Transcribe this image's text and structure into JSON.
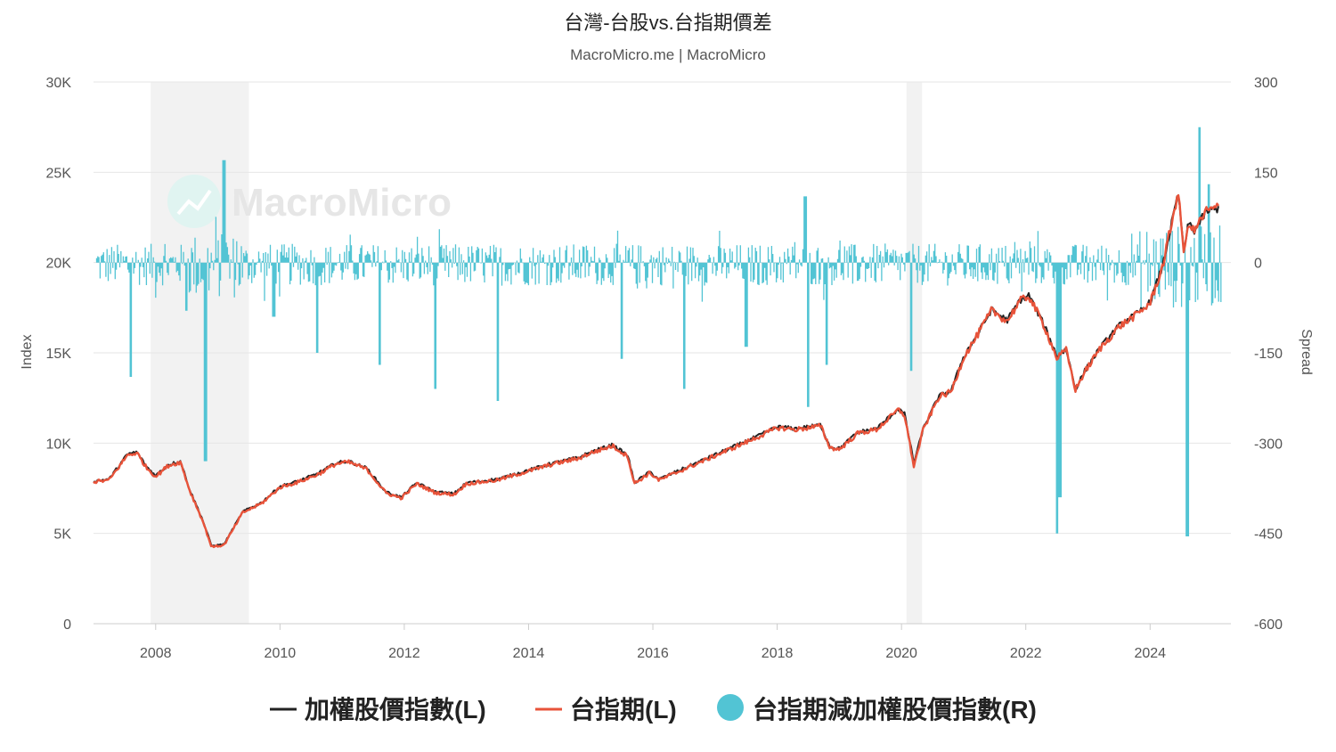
{
  "chart_data": {
    "type": "line",
    "title": "台灣-台股vs.台指期價差",
    "subtitle": "MacroMicro.me | MacroMicro",
    "watermark": "MacroMicro",
    "x_ticks": [
      "2008",
      "2010",
      "2012",
      "2014",
      "2016",
      "2018",
      "2020",
      "2022",
      "2024"
    ],
    "y_left": {
      "label": "Index",
      "range": [
        0,
        30000
      ],
      "ticks": [
        "0",
        "5K",
        "10K",
        "15K",
        "20K",
        "25K",
        "30K"
      ]
    },
    "y_right": {
      "label": "Spread",
      "range": [
        -600,
        300
      ],
      "ticks": [
        "-600",
        "-450",
        "-300",
        "-150",
        "0",
        "150",
        "300"
      ]
    },
    "x_range": [
      2007.0,
      2025.3
    ],
    "recession_bands": [
      [
        2007.92,
        2009.5
      ],
      [
        2020.08,
        2020.33
      ]
    ],
    "grid": true,
    "legend_position": "bottom",
    "colors": {
      "taiex": "#222222",
      "futures": "#e8533a",
      "spread": "#52c4d4",
      "band": "#f2f2f2",
      "grid": "#e6e6e6"
    },
    "series": [
      {
        "name": "加權股價指數(L)",
        "axis": "left",
        "type": "line",
        "x": [
          2007.0,
          2007.25,
          2007.55,
          2007.7,
          2007.85,
          2008.0,
          2008.2,
          2008.4,
          2008.55,
          2008.75,
          2008.9,
          2009.1,
          2009.4,
          2009.7,
          2010.0,
          2010.3,
          2010.6,
          2010.9,
          2011.1,
          2011.4,
          2011.7,
          2011.95,
          2012.2,
          2012.5,
          2012.8,
          2013.0,
          2013.5,
          2014.0,
          2014.4,
          2014.8,
          2015.0,
          2015.35,
          2015.6,
          2015.7,
          2015.95,
          2016.1,
          2016.5,
          2016.9,
          2017.3,
          2017.7,
          2018.0,
          2018.3,
          2018.7,
          2018.85,
          2019.0,
          2019.3,
          2019.6,
          2019.95,
          2020.05,
          2020.2,
          2020.35,
          2020.6,
          2020.8,
          2021.0,
          2021.2,
          2021.45,
          2021.7,
          2021.9,
          2022.05,
          2022.3,
          2022.5,
          2022.65,
          2022.8,
          2022.95,
          2023.2,
          2023.5,
          2023.8,
          2024.0,
          2024.2,
          2024.45,
          2024.55,
          2024.62,
          2024.7,
          2024.9,
          2025.1
        ],
        "y": [
          7900,
          8000,
          9400,
          9500,
          8700,
          8200,
          8800,
          9000,
          7400,
          5800,
          4300,
          4400,
          6200,
          6700,
          7600,
          7900,
          8300,
          8900,
          9000,
          8600,
          7300,
          7000,
          7800,
          7300,
          7200,
          7800,
          8000,
          8500,
          8900,
          9200,
          9500,
          9900,
          9300,
          7800,
          8400,
          8000,
          8600,
          9200,
          9800,
          10400,
          10900,
          10800,
          11000,
          9800,
          9700,
          10600,
          10800,
          11900,
          11600,
          8900,
          10800,
          12600,
          12900,
          14800,
          15900,
          17400,
          16800,
          17900,
          18200,
          16500,
          14800,
          15200,
          13000,
          14000,
          15300,
          16500,
          17200,
          17800,
          19800,
          23800,
          20500,
          22300,
          21700,
          22800,
          23000
        ]
      },
      {
        "name": "台指期(L)",
        "axis": "left",
        "type": "line",
        "x": [
          2007.0,
          2007.25,
          2007.55,
          2007.7,
          2007.85,
          2008.0,
          2008.2,
          2008.4,
          2008.55,
          2008.75,
          2008.9,
          2009.1,
          2009.4,
          2009.7,
          2010.0,
          2010.3,
          2010.6,
          2010.9,
          2011.1,
          2011.4,
          2011.7,
          2011.95,
          2012.2,
          2012.5,
          2012.8,
          2013.0,
          2013.5,
          2014.0,
          2014.4,
          2014.8,
          2015.0,
          2015.35,
          2015.6,
          2015.7,
          2015.95,
          2016.1,
          2016.5,
          2016.9,
          2017.3,
          2017.7,
          2018.0,
          2018.3,
          2018.7,
          2018.85,
          2019.0,
          2019.3,
          2019.6,
          2019.95,
          2020.05,
          2020.2,
          2020.35,
          2020.6,
          2020.8,
          2021.0,
          2021.2,
          2021.45,
          2021.7,
          2021.9,
          2022.05,
          2022.3,
          2022.5,
          2022.65,
          2022.8,
          2022.95,
          2023.2,
          2023.5,
          2023.8,
          2024.0,
          2024.2,
          2024.45,
          2024.55,
          2024.62,
          2024.7,
          2024.9,
          2025.1
        ],
        "y": [
          7850,
          7950,
          9350,
          9450,
          8650,
          8150,
          8750,
          8950,
          7350,
          5750,
          4250,
          4350,
          6150,
          6650,
          7550,
          7850,
          8250,
          8850,
          8950,
          8550,
          7250,
          6950,
          7750,
          7250,
          7150,
          7750,
          7950,
          8450,
          8850,
          9150,
          9450,
          9850,
          9250,
          7750,
          8350,
          7950,
          8550,
          9150,
          9750,
          10350,
          10850,
          10750,
          10950,
          9750,
          9650,
          10550,
          10750,
          11850,
          11550,
          8700,
          10750,
          12550,
          12850,
          14750,
          15850,
          17350,
          16750,
          17850,
          18150,
          16450,
          14700,
          15150,
          12950,
          13950,
          15250,
          16450,
          17150,
          17750,
          19750,
          23900,
          20400,
          22300,
          21700,
          22850,
          23050
        ]
      },
      {
        "name": "台指期減加權股價指數(R)",
        "axis": "right",
        "type": "bar"
      }
    ]
  }
}
